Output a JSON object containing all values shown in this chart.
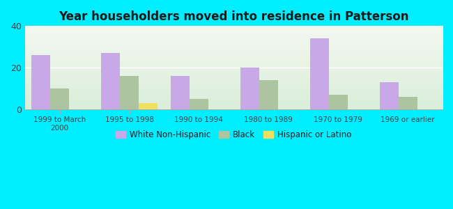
{
  "title": "Year householders moved into residence in Patterson",
  "categories": [
    "1999 to March\n2000",
    "1995 to 1998",
    "1990 to 1994",
    "1980 to 1989",
    "1970 to 1979",
    "1969 or earlier"
  ],
  "white_non_hispanic": [
    26,
    27,
    16,
    20,
    34,
    13
  ],
  "black": [
    10,
    16,
    5,
    14,
    7,
    6
  ],
  "hispanic_or_latino": [
    0,
    3,
    0,
    0,
    0,
    0
  ],
  "bar_colors": {
    "white_non_hispanic": "#c9a8e8",
    "black": "#adc4a0",
    "hispanic_or_latino": "#f0e060"
  },
  "background_outer": "#00eeff",
  "ylim": [
    0,
    40
  ],
  "yticks": [
    0,
    20,
    40
  ],
  "bar_width": 0.27,
  "legend_labels": [
    "White Non-Hispanic",
    "Black",
    "Hispanic or Latino"
  ]
}
